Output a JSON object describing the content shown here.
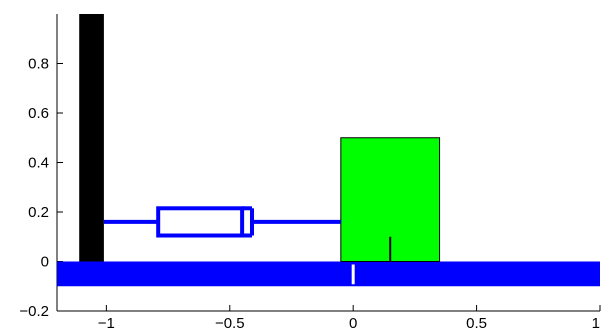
{
  "chart_data": {
    "type": "diagram",
    "title": "",
    "xlabel": "",
    "ylabel": "",
    "xlim": [
      -1.2,
      1.0
    ],
    "ylim": [
      -0.2,
      1.0
    ],
    "x_ticks": [
      {
        "value": -1,
        "label": "−1"
      },
      {
        "value": -0.5,
        "label": "−0.5"
      },
      {
        "value": 0,
        "label": "0"
      },
      {
        "value": 0.5,
        "label": "0.5"
      },
      {
        "value": 1,
        "label": "1"
      }
    ],
    "y_ticks": [
      {
        "value": -0.2,
        "label": "−0.2"
      },
      {
        "value": 0,
        "label": "0"
      },
      {
        "value": 0.2,
        "label": "0.2"
      },
      {
        "value": 0.4,
        "label": "0.4"
      },
      {
        "value": 0.6,
        "label": "0.6"
      },
      {
        "value": 0.8,
        "label": "0.8"
      }
    ],
    "objects": {
      "wall": {
        "x": [
          -1.11,
          -1.01
        ],
        "y": [
          0.0,
          1.0
        ],
        "color": "#000000"
      },
      "floor": {
        "x": [
          -1.2,
          1.0
        ],
        "y": [
          -0.1,
          0.0
        ],
        "color": "#0000ff"
      },
      "block": {
        "x": [
          -0.05,
          0.35
        ],
        "y": [
          0.0,
          0.5
        ],
        "color": "#00ff00",
        "stroke": "#000000"
      },
      "floor_marker": {
        "x": 0.0,
        "y": [
          -0.1,
          0.0
        ],
        "color": "#ffffff"
      },
      "block_marker": {
        "x": 0.15,
        "y": [
          0.0,
          0.1
        ],
        "color": "#000000"
      },
      "damper": {
        "rod_y": 0.16,
        "rod_left_x": [
          -1.01,
          -0.79
        ],
        "cylinder_x": [
          -0.79,
          -0.45
        ],
        "cylinder_y": [
          0.105,
          0.215
        ],
        "piston_x": -0.41,
        "piston_y": [
          0.105,
          0.215
        ],
        "rod_right_x": [
          -0.41,
          -0.05
        ],
        "color": "#0000ff"
      }
    }
  }
}
